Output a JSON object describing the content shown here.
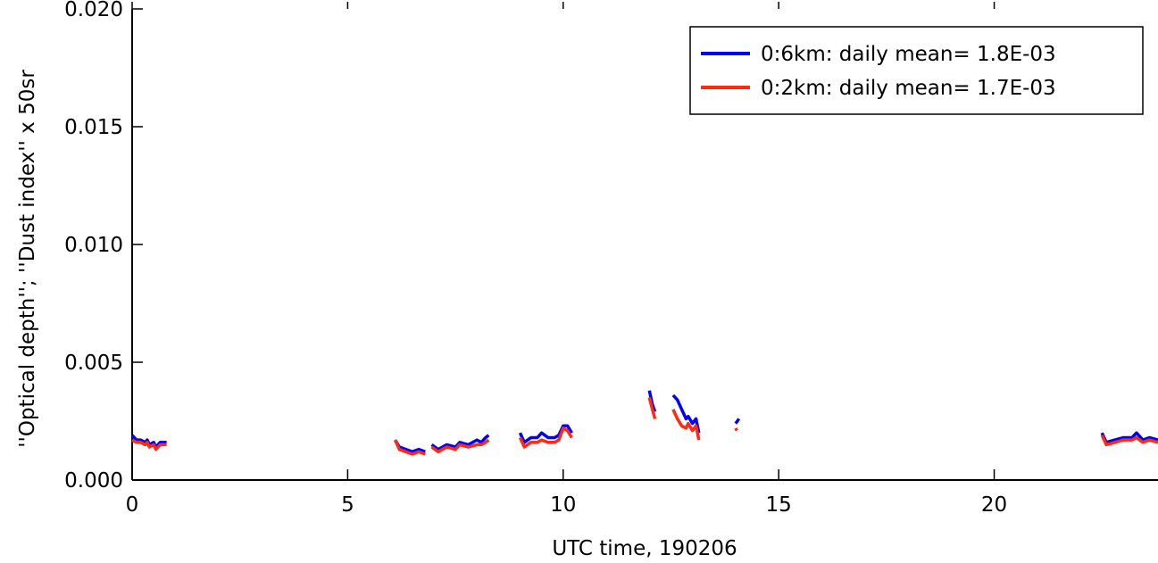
{
  "chart_data": {
    "type": "line",
    "xlabel": "UTC time, 190206",
    "ylabel": "''Optical depth''; ''Dust index'' x 50sr",
    "xlim": [
      0,
      23.8
    ],
    "ylim": [
      0.0,
      0.02
    ],
    "x_ticks": [
      0,
      5,
      10,
      15,
      20
    ],
    "x_tick_labels": [
      "0",
      "5",
      "10",
      "15",
      "20"
    ],
    "y_ticks": [
      0.0,
      0.005,
      0.01,
      0.015,
      0.02
    ],
    "y_tick_labels": [
      "0.000",
      "0.005",
      "0.010",
      "0.015",
      "0.020"
    ],
    "legend_position": "top-right",
    "grid": false,
    "series": [
      {
        "name": "0:6km: daily mean= 1.8E-03",
        "color": "#0000ff",
        "segments": [
          [
            [
              0.0,
              0.0019
            ],
            [
              0.1,
              0.0017
            ],
            [
              0.2,
              0.0017
            ],
            [
              0.3,
              0.0016
            ],
            [
              0.35,
              0.0017
            ],
            [
              0.4,
              0.0015
            ],
            [
              0.5,
              0.0016
            ],
            [
              0.55,
              0.0014
            ],
            [
              0.65,
              0.0016
            ],
            [
              0.8,
              0.0016
            ]
          ],
          [
            [
              6.1,
              0.0017
            ],
            [
              6.2,
              0.0014
            ],
            [
              6.35,
              0.0013
            ],
            [
              6.5,
              0.0012
            ],
            [
              6.65,
              0.0013
            ],
            [
              6.8,
              0.0012
            ]
          ],
          [
            [
              6.95,
              0.0015
            ],
            [
              7.1,
              0.0013
            ],
            [
              7.3,
              0.0015
            ],
            [
              7.5,
              0.0014
            ],
            [
              7.6,
              0.0016
            ],
            [
              7.8,
              0.0015
            ],
            [
              8.0,
              0.0017
            ],
            [
              8.1,
              0.0016
            ],
            [
              8.2,
              0.0018
            ],
            [
              8.27,
              0.0019
            ]
          ],
          [
            [
              9.0,
              0.002
            ],
            [
              9.1,
              0.0016
            ],
            [
              9.25,
              0.0018
            ],
            [
              9.4,
              0.0018
            ],
            [
              9.5,
              0.002
            ],
            [
              9.65,
              0.0018
            ],
            [
              9.8,
              0.0018
            ],
            [
              9.9,
              0.0019
            ],
            [
              10.0,
              0.0023
            ],
            [
              10.1,
              0.0023
            ],
            [
              10.2,
              0.002
            ]
          ],
          [
            [
              12.0,
              0.0038
            ],
            [
              12.07,
              0.0032
            ],
            [
              12.13,
              0.0029
            ]
          ],
          [
            [
              12.55,
              0.0036
            ],
            [
              12.65,
              0.0034
            ],
            [
              12.75,
              0.003
            ],
            [
              12.85,
              0.0026
            ],
            [
              12.9,
              0.0027
            ],
            [
              13.0,
              0.0024
            ],
            [
              13.08,
              0.0026
            ],
            [
              13.15,
              0.002
            ]
          ],
          [
            [
              14.0,
              0.0024
            ],
            [
              14.08,
              0.0026
            ]
          ],
          [
            [
              22.5,
              0.002
            ],
            [
              22.6,
              0.0016
            ],
            [
              22.8,
              0.0017
            ],
            [
              23.0,
              0.0018
            ],
            [
              23.2,
              0.0018
            ],
            [
              23.3,
              0.002
            ],
            [
              23.45,
              0.0017
            ],
            [
              23.6,
              0.0018
            ],
            [
              23.8,
              0.0017
            ]
          ]
        ]
      },
      {
        "name": "0:2km: daily mean= 1.7E-03",
        "color": "#ff2a10",
        "segments": [
          [
            [
              0.0,
              0.0017
            ],
            [
              0.1,
              0.0016
            ],
            [
              0.2,
              0.0016
            ],
            [
              0.3,
              0.0015
            ],
            [
              0.35,
              0.0016
            ],
            [
              0.4,
              0.0014
            ],
            [
              0.5,
              0.0015
            ],
            [
              0.55,
              0.0013
            ],
            [
              0.65,
              0.0015
            ],
            [
              0.8,
              0.0015
            ]
          ],
          [
            [
              6.1,
              0.0017
            ],
            [
              6.2,
              0.0013
            ],
            [
              6.35,
              0.0012
            ],
            [
              6.5,
              0.0011
            ],
            [
              6.65,
              0.0012
            ],
            [
              6.8,
              0.0011
            ]
          ],
          [
            [
              6.95,
              0.0014
            ],
            [
              7.1,
              0.0012
            ],
            [
              7.3,
              0.0014
            ],
            [
              7.5,
              0.0013
            ],
            [
              7.6,
              0.0015
            ],
            [
              7.8,
              0.0014
            ],
            [
              8.0,
              0.0015
            ],
            [
              8.1,
              0.0015
            ],
            [
              8.2,
              0.0016
            ],
            [
              8.27,
              0.0017
            ]
          ],
          [
            [
              9.0,
              0.0018
            ],
            [
              9.1,
              0.0014
            ],
            [
              9.25,
              0.0016
            ],
            [
              9.4,
              0.0016
            ],
            [
              9.5,
              0.0017
            ],
            [
              9.65,
              0.0016
            ],
            [
              9.8,
              0.0016
            ],
            [
              9.9,
              0.0017
            ],
            [
              10.0,
              0.0022
            ],
            [
              10.1,
              0.0021
            ],
            [
              10.2,
              0.0018
            ]
          ],
          [
            [
              12.0,
              0.0035
            ],
            [
              12.07,
              0.003
            ],
            [
              12.13,
              0.0026
            ]
          ],
          [
            [
              12.55,
              0.003
            ],
            [
              12.65,
              0.0026
            ],
            [
              12.75,
              0.0023
            ],
            [
              12.85,
              0.0022
            ],
            [
              12.9,
              0.0024
            ],
            [
              13.0,
              0.0021
            ],
            [
              13.08,
              0.0023
            ],
            [
              13.15,
              0.0017
            ]
          ],
          [
            [
              14.0,
              0.0022
            ],
            [
              14.03,
              0.0021
            ]
          ],
          [
            [
              22.5,
              0.0019
            ],
            [
              22.6,
              0.0015
            ],
            [
              22.8,
              0.0016
            ],
            [
              23.0,
              0.0017
            ],
            [
              23.2,
              0.0017
            ],
            [
              23.3,
              0.0018
            ],
            [
              23.45,
              0.0016
            ],
            [
              23.6,
              0.0017
            ],
            [
              23.8,
              0.0016
            ]
          ]
        ]
      }
    ]
  }
}
